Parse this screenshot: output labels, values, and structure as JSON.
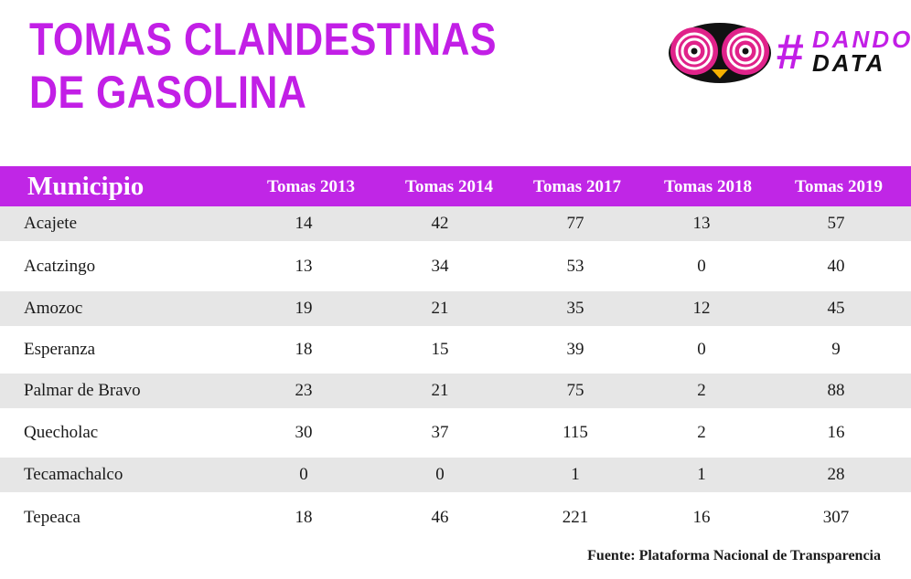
{
  "title": {
    "line1": "TOMAS CLANDESTINAS",
    "line2": "DE GASOLINA"
  },
  "logo": {
    "hash": "#",
    "word1": "DANDO",
    "word2": "DATA",
    "accent": "#c21fe6",
    "eye_color": "#e0228a"
  },
  "colors": {
    "header_bg": "#c026e6",
    "stripe": "#e6e6e6"
  },
  "source": "Fuente: Plataforma Nacional de Transparencia",
  "chart_data": {
    "type": "table",
    "row_header": "Municipio",
    "columns": [
      "Tomas 2013",
      "Tomas 2014",
      "Tomas 2017",
      "Tomas 2018",
      "Tomas 2019"
    ],
    "rows": [
      {
        "municipio": "Acajete",
        "values": [
          14,
          42,
          77,
          13,
          57
        ]
      },
      {
        "municipio": "Acatzingo",
        "values": [
          13,
          34,
          53,
          0,
          40
        ]
      },
      {
        "municipio": "Amozoc",
        "values": [
          19,
          21,
          35,
          12,
          45
        ]
      },
      {
        "municipio": "Esperanza",
        "values": [
          18,
          15,
          39,
          0,
          9
        ]
      },
      {
        "municipio": "Palmar de Bravo",
        "values": [
          23,
          21,
          75,
          2,
          88
        ]
      },
      {
        "municipio": "Quecholac",
        "values": [
          30,
          37,
          115,
          2,
          16
        ]
      },
      {
        "municipio": "Tecamachalco",
        "values": [
          0,
          0,
          1,
          1,
          28
        ]
      },
      {
        "municipio": "Tepeaca",
        "values": [
          18,
          46,
          221,
          16,
          307
        ]
      }
    ]
  }
}
